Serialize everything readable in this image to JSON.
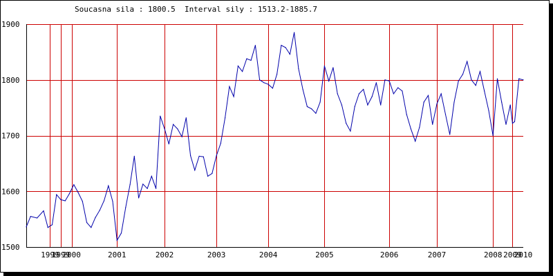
{
  "chart_data": {
    "type": "line",
    "title": "Soucasna sila : 1800.5  Interval sily : 1513.2-1885.7",
    "xlabel": "",
    "ylabel": "",
    "ylim": [
      1500,
      1900
    ],
    "xlim": [
      1998.5,
      2010.0
    ],
    "grid": true,
    "y_ticks": [
      1500,
      1600,
      1700,
      1800,
      1900
    ],
    "x_ticks": [
      {
        "label": "1999",
        "x": 1999.05
      },
      {
        "label": "1999",
        "x": 1999.3
      },
      {
        "label": "2000",
        "x": 1999.55
      },
      {
        "label": "2001",
        "x": 2000.6
      },
      {
        "label": "2002",
        "x": 2001.7
      },
      {
        "label": "2003",
        "x": 2002.9
      },
      {
        "label": "2004",
        "x": 2004.1
      },
      {
        "label": "2005",
        "x": 2005.4
      },
      {
        "label": "2006",
        "x": 2006.9
      },
      {
        "label": "2007",
        "x": 2008.0
      },
      {
        "label": "2008",
        "x": 2009.3
      },
      {
        "label": "2009",
        "x": 2009.75
      },
      {
        "label": "2010",
        "x": 2010.0
      }
    ],
    "vlines": [
      1999.05,
      1999.3,
      1999.55,
      2000.6,
      2001.7,
      2002.9,
      2004.1,
      2005.4,
      2006.9,
      2008.0,
      2009.3,
      2009.75
    ],
    "colors": {
      "line": "#0000aa",
      "grid": "#cc0000",
      "axis": "#000000",
      "frame_shadow": "#000000"
    },
    "series": [
      {
        "x": [
          1998.5,
          1998.6,
          1998.75,
          1998.9,
          1999.0,
          1999.1,
          1999.2,
          1999.3,
          1999.4,
          1999.5,
          1999.6,
          1999.7,
          1999.8,
          1999.9,
          2000.0,
          2000.1,
          2000.2,
          2000.3,
          2000.4,
          2000.5,
          2000.6,
          2000.7,
          2000.8,
          2000.9,
          2001.0,
          2001.1,
          2001.2,
          2001.3,
          2001.4,
          2001.5,
          2001.6,
          2001.7,
          2001.8,
          2001.9,
          2002.0,
          2002.1,
          2002.2,
          2002.3,
          2002.4,
          2002.5,
          2002.6,
          2002.7,
          2002.8,
          2002.9,
          2003.0,
          2003.1,
          2003.2,
          2003.3,
          2003.4,
          2003.5,
          2003.6,
          2003.7,
          2003.8,
          2003.9,
          2004.0,
          2004.1,
          2004.2,
          2004.3,
          2004.4,
          2004.5,
          2004.6,
          2004.7,
          2004.8,
          2004.9,
          2005.0,
          2005.1,
          2005.2,
          2005.3,
          2005.4,
          2005.5,
          2005.6,
          2005.7,
          2005.8,
          2005.9,
          2006.0,
          2006.1,
          2006.2,
          2006.3,
          2006.4,
          2006.5,
          2006.6,
          2006.7,
          2006.8,
          2006.9,
          2007.0,
          2007.1,
          2007.2,
          2007.3,
          2007.4,
          2007.5,
          2007.6,
          2007.7,
          2007.8,
          2007.9,
          2008.0,
          2008.1,
          2008.2,
          2008.3,
          2008.4,
          2008.5,
          2008.6,
          2008.7,
          2008.8,
          2008.9,
          2009.0,
          2009.1,
          2009.2,
          2009.3,
          2009.4,
          2009.5,
          2009.6,
          2009.7,
          2009.75,
          2009.8,
          2009.9,
          2010.0
        ],
        "values": [
          1536,
          1555,
          1552,
          1565,
          1535,
          1540,
          1594,
          1585,
          1583,
          1596,
          1612,
          1598,
          1582,
          1544,
          1535,
          1553,
          1566,
          1583,
          1610,
          1582,
          1512,
          1525,
          1571,
          1612,
          1663,
          1588,
          1613,
          1605,
          1627,
          1605,
          1735,
          1712,
          1685,
          1720,
          1712,
          1698,
          1732,
          1664,
          1638,
          1663,
          1662,
          1627,
          1632,
          1664,
          1686,
          1732,
          1788,
          1770,
          1825,
          1815,
          1838,
          1835,
          1862,
          1800,
          1795,
          1792,
          1785,
          1810,
          1862,
          1858,
          1846,
          1885,
          1820,
          1783,
          1752,
          1748,
          1740,
          1760,
          1825,
          1798,
          1822,
          1775,
          1755,
          1722,
          1708,
          1752,
          1775,
          1783,
          1755,
          1770,
          1795,
          1755,
          1800,
          1798,
          1775,
          1786,
          1780,
          1738,
          1712,
          1690,
          1715,
          1760,
          1772,
          1720,
          1757,
          1775,
          1738,
          1702,
          1760,
          1798,
          1810,
          1833,
          1800,
          1790,
          1815,
          1780,
          1745,
          1700,
          1802,
          1760,
          1720,
          1755,
          1722,
          1725,
          1802,
          1800
        ]
      }
    ]
  }
}
